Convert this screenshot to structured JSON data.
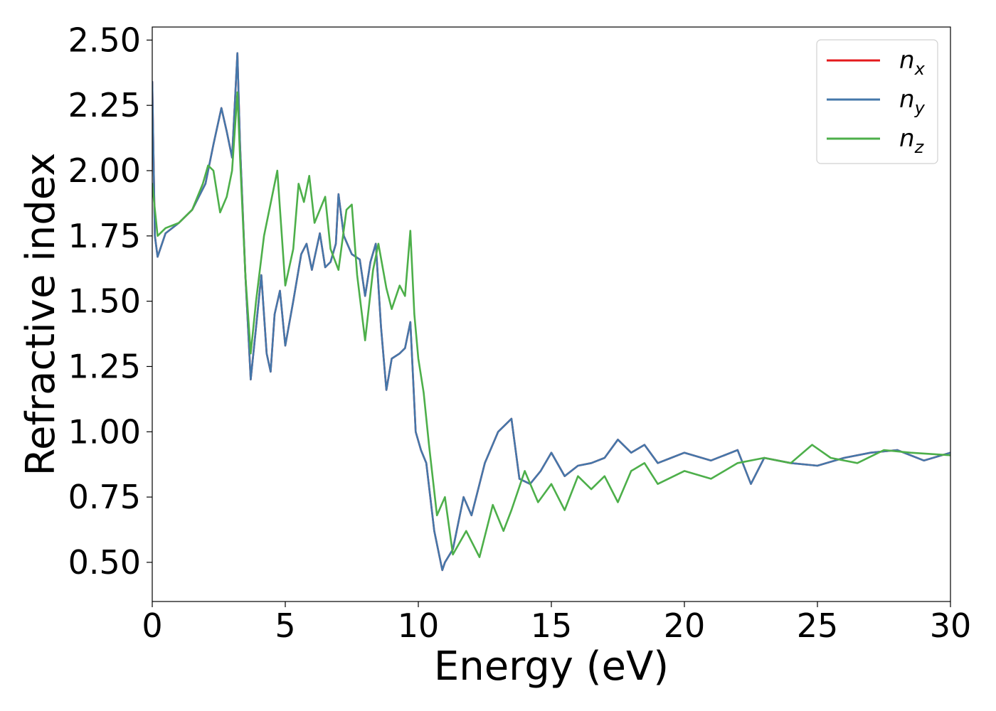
{
  "chart_data": {
    "type": "line",
    "title": "",
    "xlabel": "Energy (eV)",
    "ylabel": "Refractive index",
    "xlim": [
      0,
      30
    ],
    "ylim": [
      0.35,
      2.55
    ],
    "xticks": [
      0,
      5,
      10,
      15,
      20,
      25,
      30
    ],
    "xtick_labels": [
      "0",
      "5",
      "10",
      "15",
      "20",
      "25",
      "30"
    ],
    "yticks": [
      0.5,
      0.75,
      1.0,
      1.25,
      1.5,
      1.75,
      2.0,
      2.25,
      2.5
    ],
    "ytick_labels": [
      "0.50",
      "0.75",
      "1.00",
      "1.25",
      "1.50",
      "1.75",
      "2.00",
      "2.25",
      "2.50"
    ],
    "grid": false,
    "legend_position": "top-right",
    "series": [
      {
        "name": "n_x",
        "label_base": "n",
        "label_sub": "x",
        "color": "#e41a1c",
        "x": [
          0,
          0.1,
          0.2,
          0.5,
          1.0,
          1.5,
          2.0,
          2.3,
          2.6,
          2.8,
          3.0,
          3.2,
          3.3,
          3.5,
          3.7,
          3.9,
          4.1,
          4.3,
          4.45,
          4.6,
          4.8,
          5.0,
          5.3,
          5.6,
          5.8,
          6.0,
          6.3,
          6.5,
          6.7,
          6.9,
          7.0,
          7.2,
          7.5,
          7.8,
          8.0,
          8.2,
          8.4,
          8.6,
          8.8,
          9.0,
          9.3,
          9.5,
          9.7,
          9.9,
          10.1,
          10.3,
          10.6,
          10.9,
          11.0,
          11.3,
          11.7,
          12.0,
          12.5,
          13.0,
          13.5,
          13.8,
          14.2,
          14.6,
          15.0,
          15.5,
          16.0,
          16.5,
          17.0,
          17.5,
          18.0,
          18.5,
          19.0,
          19.5,
          20.0,
          21.0,
          22.0,
          22.5,
          23.0,
          24.0,
          25.0,
          26.0,
          27.0,
          28.0,
          29.0,
          30.0
        ],
        "values": [
          2.34,
          1.75,
          1.67,
          1.76,
          1.8,
          1.85,
          1.95,
          2.1,
          2.24,
          2.15,
          2.05,
          2.45,
          2.1,
          1.6,
          1.2,
          1.4,
          1.6,
          1.3,
          1.23,
          1.45,
          1.54,
          1.33,
          1.5,
          1.68,
          1.72,
          1.62,
          1.76,
          1.63,
          1.65,
          1.72,
          1.91,
          1.75,
          1.68,
          1.66,
          1.52,
          1.65,
          1.72,
          1.4,
          1.16,
          1.28,
          1.3,
          1.32,
          1.42,
          1.0,
          0.93,
          0.88,
          0.62,
          0.47,
          0.5,
          0.55,
          0.75,
          0.68,
          0.88,
          1.0,
          1.05,
          0.82,
          0.8,
          0.85,
          0.92,
          0.83,
          0.87,
          0.88,
          0.9,
          0.97,
          0.92,
          0.95,
          0.88,
          0.9,
          0.92,
          0.89,
          0.93,
          0.8,
          0.9,
          0.88,
          0.87,
          0.9,
          0.92,
          0.93,
          0.89,
          0.92
        ]
      },
      {
        "name": "n_y",
        "label_base": "n",
        "label_sub": "y",
        "color": "#4477aa",
        "x": [
          0,
          0.1,
          0.2,
          0.5,
          1.0,
          1.5,
          2.0,
          2.3,
          2.6,
          2.8,
          3.0,
          3.2,
          3.3,
          3.5,
          3.7,
          3.9,
          4.1,
          4.3,
          4.45,
          4.6,
          4.8,
          5.0,
          5.3,
          5.6,
          5.8,
          6.0,
          6.3,
          6.5,
          6.7,
          6.9,
          7.0,
          7.2,
          7.5,
          7.8,
          8.0,
          8.2,
          8.4,
          8.6,
          8.8,
          9.0,
          9.3,
          9.5,
          9.7,
          9.9,
          10.1,
          10.3,
          10.6,
          10.9,
          11.0,
          11.3,
          11.7,
          12.0,
          12.5,
          13.0,
          13.5,
          13.8,
          14.2,
          14.6,
          15.0,
          15.5,
          16.0,
          16.5,
          17.0,
          17.5,
          18.0,
          18.5,
          19.0,
          19.5,
          20.0,
          21.0,
          22.0,
          22.5,
          23.0,
          24.0,
          25.0,
          26.0,
          27.0,
          28.0,
          29.0,
          30.0
        ],
        "values": [
          2.34,
          1.75,
          1.67,
          1.76,
          1.8,
          1.85,
          1.95,
          2.1,
          2.24,
          2.15,
          2.05,
          2.45,
          2.1,
          1.6,
          1.2,
          1.4,
          1.6,
          1.3,
          1.23,
          1.45,
          1.54,
          1.33,
          1.5,
          1.68,
          1.72,
          1.62,
          1.76,
          1.63,
          1.65,
          1.72,
          1.91,
          1.75,
          1.68,
          1.66,
          1.52,
          1.65,
          1.72,
          1.4,
          1.16,
          1.28,
          1.3,
          1.32,
          1.42,
          1.0,
          0.93,
          0.88,
          0.62,
          0.47,
          0.5,
          0.55,
          0.75,
          0.68,
          0.88,
          1.0,
          1.05,
          0.82,
          0.8,
          0.85,
          0.92,
          0.83,
          0.87,
          0.88,
          0.9,
          0.97,
          0.92,
          0.95,
          0.88,
          0.9,
          0.92,
          0.89,
          0.93,
          0.8,
          0.9,
          0.88,
          0.87,
          0.9,
          0.92,
          0.93,
          0.89,
          0.92
        ]
      },
      {
        "name": "n_z",
        "label_base": "n",
        "label_sub": "z",
        "color": "#4daf4a",
        "x": [
          0,
          0.2,
          0.5,
          1.0,
          1.5,
          1.9,
          2.1,
          2.3,
          2.55,
          2.8,
          3.0,
          3.2,
          3.3,
          3.5,
          3.7,
          3.9,
          4.2,
          4.5,
          4.7,
          5.0,
          5.3,
          5.5,
          5.7,
          5.9,
          6.1,
          6.3,
          6.5,
          6.7,
          7.0,
          7.3,
          7.5,
          7.7,
          8.0,
          8.3,
          8.5,
          8.8,
          9.0,
          9.3,
          9.5,
          9.7,
          9.85,
          10.0,
          10.2,
          10.4,
          10.7,
          11.0,
          11.3,
          11.8,
          12.3,
          12.8,
          13.2,
          13.5,
          14.0,
          14.5,
          15.0,
          15.5,
          16.0,
          16.5,
          17.0,
          17.5,
          18.0,
          18.5,
          19.0,
          20.0,
          21.0,
          22.0,
          23.0,
          24.0,
          24.8,
          25.5,
          26.5,
          27.5,
          28.5,
          30.0
        ],
        "values": [
          1.95,
          1.75,
          1.78,
          1.8,
          1.85,
          1.95,
          2.02,
          2.0,
          1.84,
          1.9,
          2.0,
          2.3,
          2.05,
          1.6,
          1.3,
          1.5,
          1.75,
          1.9,
          2.0,
          1.56,
          1.7,
          1.95,
          1.88,
          1.98,
          1.8,
          1.85,
          1.9,
          1.7,
          1.62,
          1.85,
          1.87,
          1.6,
          1.35,
          1.62,
          1.72,
          1.55,
          1.47,
          1.56,
          1.52,
          1.77,
          1.45,
          1.28,
          1.15,
          0.95,
          0.68,
          0.75,
          0.53,
          0.62,
          0.52,
          0.72,
          0.62,
          0.7,
          0.85,
          0.73,
          0.8,
          0.7,
          0.83,
          0.78,
          0.83,
          0.73,
          0.85,
          0.88,
          0.8,
          0.85,
          0.82,
          0.88,
          0.9,
          0.88,
          0.95,
          0.9,
          0.88,
          0.93,
          0.92,
          0.91
        ]
      }
    ]
  }
}
